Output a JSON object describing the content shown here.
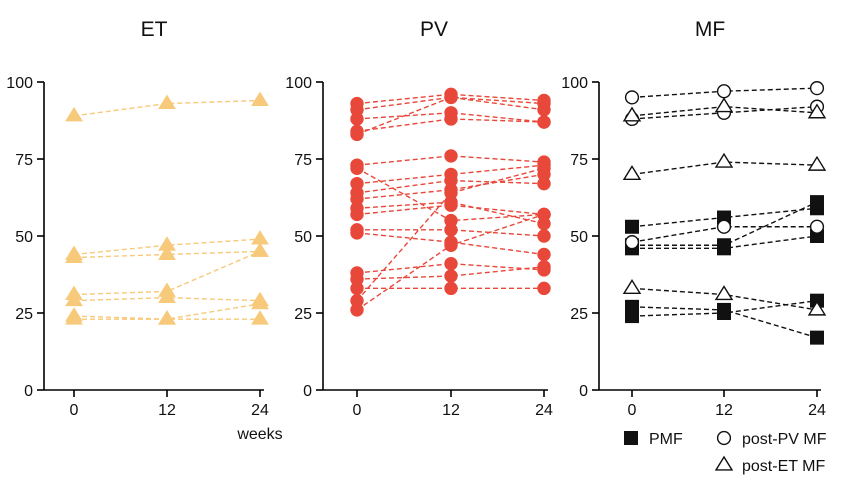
{
  "chart_data": [
    {
      "type": "line",
      "title": "ET",
      "x": [
        0,
        12,
        24
      ],
      "xlabel": "weeks",
      "ylabel": "",
      "ylim": [
        0,
        100
      ],
      "yticks": [
        0,
        25,
        50,
        75,
        100
      ],
      "color": "#f7c97a",
      "series": [
        {
          "marker": "triangle",
          "values": [
            89,
            93,
            94
          ]
        },
        {
          "marker": "triangle",
          "values": [
            44,
            47,
            49
          ]
        },
        {
          "marker": "triangle",
          "values": [
            43,
            44,
            45
          ]
        },
        {
          "marker": "triangle",
          "values": [
            31,
            32,
            45
          ]
        },
        {
          "marker": "triangle",
          "values": [
            29,
            30,
            29
          ]
        },
        {
          "marker": "triangle",
          "values": [
            24,
            23,
            28
          ]
        },
        {
          "marker": "triangle",
          "values": [
            23,
            23,
            23
          ]
        }
      ]
    },
    {
      "type": "line",
      "title": "PV",
      "x": [
        0,
        12,
        24
      ],
      "xlabel": "",
      "ylabel": "",
      "ylim": [
        0,
        100
      ],
      "yticks": [
        0,
        25,
        50,
        75,
        100
      ],
      "color": "#e8483a",
      "series": [
        {
          "marker": "circle",
          "values": [
            93,
            96,
            94
          ]
        },
        {
          "marker": "circle",
          "values": [
            91,
            95,
            91
          ]
        },
        {
          "marker": "circle",
          "values": [
            88,
            90,
            87
          ]
        },
        {
          "marker": "circle",
          "values": [
            84,
            88,
            87
          ]
        },
        {
          "marker": "circle",
          "values": [
            83,
            95,
            93
          ]
        },
        {
          "marker": "circle",
          "values": [
            73,
            76,
            74
          ]
        },
        {
          "marker": "circle",
          "values": [
            72,
            55,
            57
          ]
        },
        {
          "marker": "circle",
          "values": [
            67,
            70,
            73
          ]
        },
        {
          "marker": "circle",
          "values": [
            64,
            68,
            67
          ]
        },
        {
          "marker": "circle",
          "values": [
            62,
            65,
            70
          ]
        },
        {
          "marker": "circle",
          "values": [
            59,
            61,
            54
          ]
        },
        {
          "marker": "circle",
          "values": [
            57,
            60,
            57
          ]
        },
        {
          "marker": "circle",
          "values": [
            52,
            52,
            50
          ]
        },
        {
          "marker": "circle",
          "values": [
            51,
            48,
            44
          ]
        },
        {
          "marker": "circle",
          "values": [
            38,
            41,
            39
          ]
        },
        {
          "marker": "circle",
          "values": [
            36,
            37,
            40
          ]
        },
        {
          "marker": "circle",
          "values": [
            33,
            33,
            33
          ]
        },
        {
          "marker": "circle",
          "values": [
            29,
            64,
            72
          ]
        },
        {
          "marker": "circle",
          "values": [
            26,
            47,
            57
          ]
        }
      ]
    },
    {
      "type": "line",
      "title": "MF",
      "x": [
        0,
        12,
        24
      ],
      "xlabel": "",
      "ylabel": "",
      "ylim": [
        0,
        100
      ],
      "yticks": [
        0,
        25,
        50,
        75,
        100
      ],
      "color": "#111111",
      "series": [
        {
          "name": "PMF",
          "marker": "square",
          "values": [
            53,
            56,
            59
          ]
        },
        {
          "name": "PMF",
          "marker": "square",
          "values": [
            47,
            47,
            61
          ]
        },
        {
          "name": "PMF",
          "marker": "square",
          "values": [
            46,
            46,
            50
          ]
        },
        {
          "name": "PMF",
          "marker": "square",
          "values": [
            27,
            26,
            17
          ]
        },
        {
          "name": "PMF",
          "marker": "square",
          "values": [
            24,
            25,
            29
          ]
        },
        {
          "name": "post-PV MF",
          "marker": "circle",
          "values": [
            95,
            97,
            98
          ]
        },
        {
          "name": "post-PV MF",
          "marker": "circle",
          "values": [
            88,
            90,
            92
          ]
        },
        {
          "name": "post-PV MF",
          "marker": "circle",
          "values": [
            48,
            53,
            53
          ]
        },
        {
          "name": "post-ET MF",
          "marker": "triangle",
          "values": [
            89,
            92,
            90
          ]
        },
        {
          "name": "post-ET MF",
          "marker": "triangle",
          "values": [
            70,
            74,
            73
          ]
        },
        {
          "name": "post-ET MF",
          "marker": "triangle",
          "values": [
            33,
            31,
            26
          ]
        }
      ]
    }
  ],
  "legend": {
    "placement": "bottom-right",
    "items": [
      {
        "label": "PMF",
        "marker": "square"
      },
      {
        "label": "post-PV MF",
        "marker": "circle"
      },
      {
        "label": "post-ET MF",
        "marker": "triangle"
      }
    ]
  }
}
